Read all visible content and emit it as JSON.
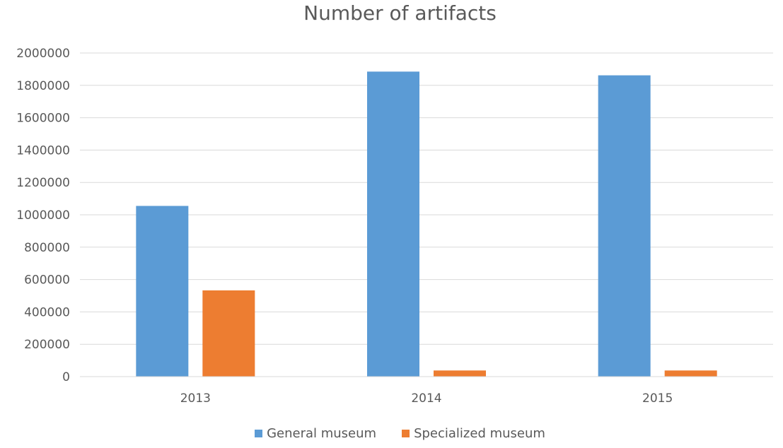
{
  "chart_data": {
    "type": "bar",
    "title": "Number of artifacts",
    "xlabel": "",
    "ylabel": "",
    "categories": [
      "2013",
      "2014",
      "2015"
    ],
    "series": [
      {
        "name": "General museum",
        "color": "#5B9BD5",
        "values": [
          1055000,
          1885000,
          1862000
        ]
      },
      {
        "name": "Specialized museum",
        "color": "#ED7D31",
        "values": [
          533000,
          38000,
          38000
        ]
      }
    ],
    "ylim": [
      0,
      2000000
    ],
    "yticks": [
      "0",
      "200000",
      "400000",
      "600000",
      "800000",
      "1000000",
      "1200000",
      "1400000",
      "1600000",
      "1800000",
      "2000000"
    ],
    "grid": true,
    "legend_position": "bottom"
  }
}
